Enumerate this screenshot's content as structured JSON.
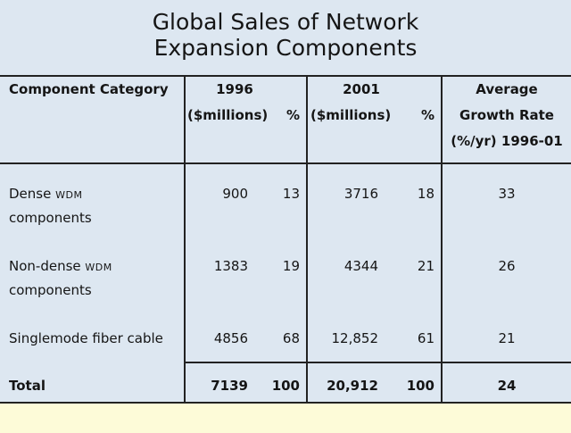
{
  "title": {
    "line1": "Global Sales of Network",
    "line2": "Expansion Components"
  },
  "headers": {
    "component_category": "Component Category",
    "year1996": "1996",
    "millions1996": "($millions)",
    "pct1996": "%",
    "year2001": "2001",
    "millions2001": "($millions)",
    "pct2001": "%",
    "growth_line1": "Average",
    "growth_line2": "Growth Rate",
    "growth_line3": "(%/yr) 1996-01"
  },
  "rows": [
    {
      "name_line1": "Dense ",
      "name_sc1": "WDM",
      "name_line2": "components",
      "m1996": "900",
      "p1996": "13",
      "m2001": "3716",
      "p2001": "18",
      "growth": "33"
    },
    {
      "name_line1": "Non-dense ",
      "name_sc1": "WDM",
      "name_line2": "components",
      "m1996": "1383",
      "p1996": "19",
      "m2001": "4344",
      "p2001": "21",
      "growth": "26"
    },
    {
      "name_line1": "Singlemode fiber cable",
      "name_sc1": "",
      "name_line2": "",
      "m1996": "4856",
      "p1996": "68",
      "m2001": "12,852",
      "p2001": "61",
      "growth": "21"
    }
  ],
  "total": {
    "label": "Total",
    "m1996": "7139",
    "p1996": "100",
    "m2001": "20,912",
    "p2001": "100",
    "growth": "24"
  },
  "colors": {
    "panel_bg": "#dde7f1",
    "page_bg": "#fdfbd8",
    "rule": "#222222"
  }
}
